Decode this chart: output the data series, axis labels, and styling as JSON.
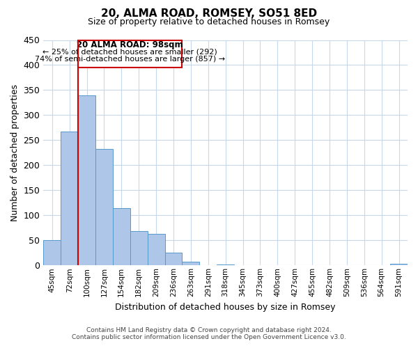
{
  "title": "20, ALMA ROAD, ROMSEY, SO51 8ED",
  "subtitle": "Size of property relative to detached houses in Romsey",
  "xlabel": "Distribution of detached houses by size in Romsey",
  "ylabel": "Number of detached properties",
  "categories": [
    "45sqm",
    "72sqm",
    "100sqm",
    "127sqm",
    "154sqm",
    "182sqm",
    "209sqm",
    "236sqm",
    "263sqm",
    "291sqm",
    "318sqm",
    "345sqm",
    "373sqm",
    "400sqm",
    "427sqm",
    "455sqm",
    "482sqm",
    "509sqm",
    "536sqm",
    "564sqm",
    "591sqm"
  ],
  "values": [
    50,
    267,
    340,
    232,
    115,
    68,
    63,
    25,
    7,
    0,
    2,
    0,
    1,
    0,
    0,
    0,
    0,
    0,
    0,
    0,
    3
  ],
  "bar_color": "#aec6e8",
  "bar_edge_color": "#5599cc",
  "property_line_index": 2,
  "property_line_color": "#cc0000",
  "annotation_title": "20 ALMA ROAD: 98sqm",
  "annotation_line1": "← 25% of detached houses are smaller (292)",
  "annotation_line2": "74% of semi-detached houses are larger (857) →",
  "annotation_box_edge_color": "#cc0000",
  "ylim": [
    0,
    450
  ],
  "yticks": [
    0,
    50,
    100,
    150,
    200,
    250,
    300,
    350,
    400,
    450
  ],
  "footer_line1": "Contains HM Land Registry data © Crown copyright and database right 2024.",
  "footer_line2": "Contains public sector information licensed under the Open Government Licence v3.0.",
  "bg_color": "#ffffff",
  "grid_color": "#c8d8ec"
}
